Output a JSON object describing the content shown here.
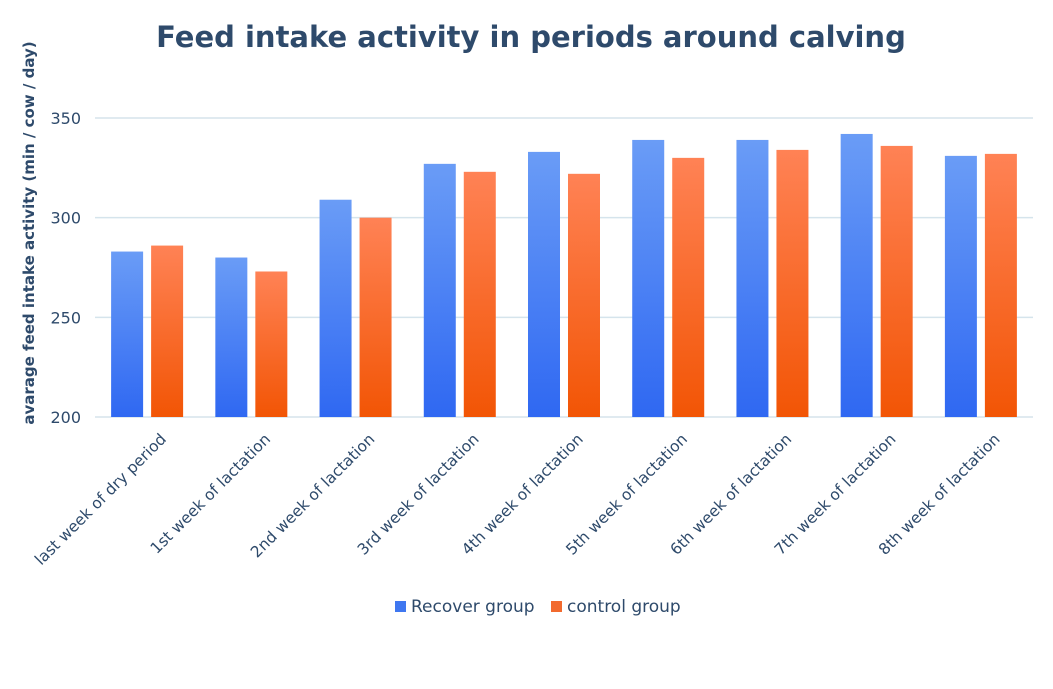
{
  "chart_data": {
    "type": "bar",
    "title": "Feed intake activity in periods around calving",
    "ylabel": "avarage feed intake activity (min / cow / day)",
    "xlabel": "",
    "ylim": [
      200,
      350
    ],
    "yticks": [
      200,
      250,
      300,
      350
    ],
    "grid": true,
    "legend_position": "bottom",
    "categories": [
      "last week of dry period",
      "1st week of lactation",
      "2nd week of lactation",
      "3rd week of lactation",
      "4th week of lactation",
      "5th week of lactation",
      "6th week of lactation",
      "7th week of lactation",
      "8th week of lactation"
    ],
    "series": [
      {
        "name": "Recover group",
        "color": "#3F77F0",
        "values": [
          283,
          280,
          309,
          327,
          333,
          339,
          339,
          342,
          331
        ]
      },
      {
        "name": "control group",
        "color": "#F26A2E",
        "values": [
          286,
          273,
          300,
          323,
          322,
          330,
          334,
          336,
          332
        ]
      }
    ],
    "colors": {
      "title": "#2E4A6B",
      "text": "#2E4A6B",
      "grid": "#D5E4EC",
      "recover_light": "#6A9CF6",
      "recover_dark": "#2F68F2",
      "control_light": "#FF8255",
      "control_dark": "#F25505"
    }
  }
}
